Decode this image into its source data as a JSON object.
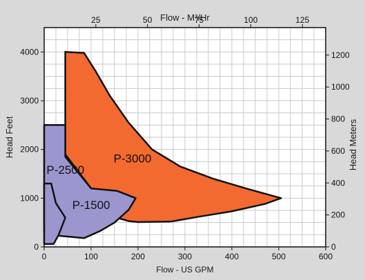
{
  "chart_data": {
    "type": "area",
    "title_top": "Flow - M³/Hr",
    "xlabel": "Flow - US GPM",
    "ylabel_left": "Head Feet",
    "ylabel_right": "Head Meters",
    "xlim": [
      0,
      600
    ],
    "ylim": [
      0,
      4500
    ],
    "x_ticks": [
      0,
      100,
      200,
      300,
      400,
      500,
      600
    ],
    "y_ticks": [
      0,
      1000,
      2000,
      3000,
      4000
    ],
    "top_x_ticks": [
      25,
      50,
      75,
      100,
      125
    ],
    "right_y_ticks": [
      0,
      200,
      400,
      600,
      800,
      1000,
      1200
    ],
    "grid": true,
    "series": [
      {
        "name": "P-3000",
        "color": "#f26a2f",
        "points": [
          [
            45,
            4000
          ],
          [
            85,
            3980
          ],
          [
            110,
            3600
          ],
          [
            140,
            3100
          ],
          [
            180,
            2550
          ],
          [
            230,
            2000
          ],
          [
            290,
            1650
          ],
          [
            360,
            1400
          ],
          [
            430,
            1200
          ],
          [
            505,
            1000
          ],
          [
            470,
            880
          ],
          [
            400,
            730
          ],
          [
            330,
            620
          ],
          [
            270,
            520
          ],
          [
            200,
            510
          ],
          [
            180,
            530
          ],
          [
            140,
            640
          ],
          [
            100,
            1200
          ],
          [
            45,
            1900
          ],
          [
            45,
            4000
          ]
        ]
      },
      {
        "name": "P-2500",
        "color": "#9b97ce",
        "points": [
          [
            0,
            2500
          ],
          [
            45,
            2500
          ],
          [
            45,
            1850
          ],
          [
            100,
            1200
          ],
          [
            155,
            1150
          ],
          [
            195,
            1000
          ],
          [
            180,
            760
          ],
          [
            150,
            500
          ],
          [
            120,
            330
          ],
          [
            85,
            180
          ],
          [
            30,
            230
          ],
          [
            10,
            330
          ],
          [
            0,
            330
          ],
          [
            0,
            2500
          ]
        ]
      },
      {
        "name": "P-1500",
        "color": "#9b97ce",
        "points": [
          [
            0,
            1300
          ],
          [
            15,
            1300
          ],
          [
            25,
            900
          ],
          [
            45,
            600
          ],
          [
            35,
            350
          ],
          [
            30,
            230
          ],
          [
            20,
            60
          ],
          [
            0,
            60
          ],
          [
            0,
            1300
          ]
        ]
      }
    ],
    "labels": [
      {
        "text": "P-3000",
        "x": 148,
        "y": 1730
      },
      {
        "text": "P-2500",
        "x": 5,
        "y": 1500
      },
      {
        "text": "P-1500",
        "x": 60,
        "y": 780
      }
    ]
  }
}
